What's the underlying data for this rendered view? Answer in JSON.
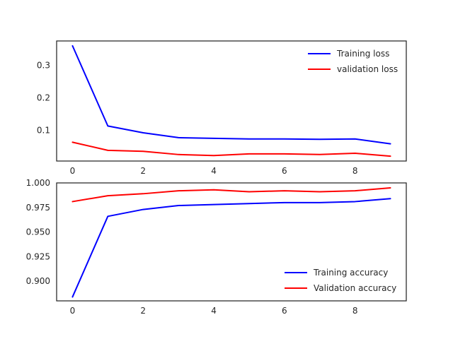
{
  "colors": {
    "background": "#ffffff",
    "axes_frame": "#262626",
    "tick_text": "#262626",
    "training": "#0000ff",
    "validation": "#ff0000"
  },
  "chart_data": [
    {
      "type": "line",
      "title": "",
      "xlabel": "",
      "ylabel": "",
      "xlim": [
        -0.45,
        9.45
      ],
      "ylim": [
        0.005,
        0.375
      ],
      "xticks": [
        0,
        2,
        4,
        6,
        8
      ],
      "yticks": [
        0.1,
        0.2,
        0.3
      ],
      "ytick_labels": [
        "0.1",
        "0.2",
        "0.3"
      ],
      "grid": false,
      "legend_position": "upper right",
      "x": [
        0,
        1,
        2,
        3,
        4,
        5,
        6,
        7,
        8,
        9
      ],
      "series": [
        {
          "name": "Training loss",
          "color": "#0000ff",
          "values": [
            0.36,
            0.113,
            0.092,
            0.077,
            0.075,
            0.073,
            0.073,
            0.072,
            0.073,
            0.058
          ]
        },
        {
          "name": "validation loss",
          "color": "#ff0000",
          "values": [
            0.063,
            0.038,
            0.035,
            0.025,
            0.022,
            0.027,
            0.027,
            0.025,
            0.029,
            0.02
          ]
        }
      ]
    },
    {
      "type": "line",
      "title": "",
      "xlabel": "",
      "ylabel": "",
      "xlim": [
        -0.45,
        9.45
      ],
      "ylim": [
        0.88,
        1.0
      ],
      "xticks": [
        0,
        2,
        4,
        6,
        8
      ],
      "yticks": [
        0.9,
        0.925,
        0.95,
        0.975,
        1.0
      ],
      "ytick_labels": [
        "0.900",
        "0.925",
        "0.950",
        "0.975",
        "1.000"
      ],
      "grid": false,
      "legend_position": "lower right",
      "x": [
        0,
        1,
        2,
        3,
        4,
        5,
        6,
        7,
        8,
        9
      ],
      "series": [
        {
          "name": "Training accuracy",
          "color": "#0000ff",
          "values": [
            0.884,
            0.966,
            0.973,
            0.977,
            0.978,
            0.979,
            0.98,
            0.98,
            0.981,
            0.984
          ]
        },
        {
          "name": "Validation accuracy",
          "color": "#ff0000",
          "values": [
            0.981,
            0.987,
            0.989,
            0.992,
            0.993,
            0.991,
            0.992,
            0.991,
            0.992,
            0.995
          ]
        }
      ]
    }
  ]
}
